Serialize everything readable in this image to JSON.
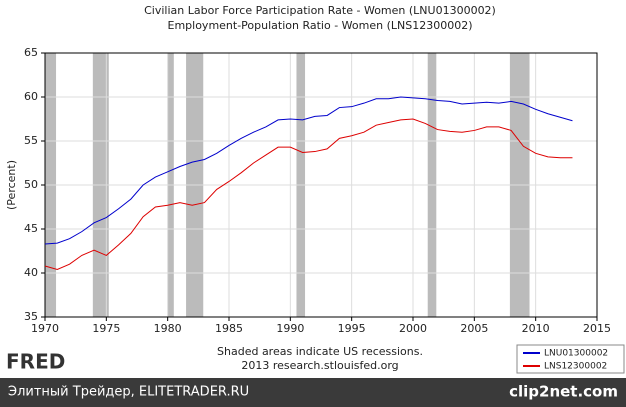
{
  "chart_data": {
    "type": "line",
    "title": "Civilian Labor Force Participation Rate - Women (LNU01300002)",
    "subtitle": "Employment-Population Ratio - Women (LNS12300002)",
    "ylabel": "(Percent)",
    "notes": [
      "Shaded areas indicate US recessions.",
      "2013 research.stlouisfed.org"
    ],
    "x": [
      1970,
      1971,
      1972,
      1973,
      1974,
      1975,
      1976,
      1977,
      1978,
      1979,
      1980,
      1981,
      1982,
      1983,
      1984,
      1985,
      1986,
      1987,
      1988,
      1989,
      1990,
      1991,
      1992,
      1993,
      1994,
      1995,
      1996,
      1997,
      1998,
      1999,
      2000,
      2001,
      2002,
      2003,
      2004,
      2005,
      2006,
      2007,
      2008,
      2009,
      2010,
      2011,
      2012,
      2013
    ],
    "series": [
      {
        "name": "LNU01300002",
        "color": "#0000cc",
        "values": [
          43.3,
          43.4,
          43.9,
          44.7,
          45.7,
          46.3,
          47.3,
          48.4,
          50.0,
          50.9,
          51.5,
          52.1,
          52.6,
          52.9,
          53.6,
          54.5,
          55.3,
          56.0,
          56.6,
          57.4,
          57.5,
          57.4,
          57.8,
          57.9,
          58.8,
          58.9,
          59.3,
          59.8,
          59.8,
          60.0,
          59.9,
          59.8,
          59.6,
          59.5,
          59.2,
          59.3,
          59.4,
          59.3,
          59.5,
          59.2,
          58.6,
          58.1,
          57.7,
          57.3
        ]
      },
      {
        "name": "LNS12300002",
        "color": "#dd0000",
        "values": [
          40.8,
          40.4,
          41.0,
          42.0,
          42.6,
          42.0,
          43.2,
          44.5,
          46.4,
          47.5,
          47.7,
          48.0,
          47.7,
          48.0,
          49.5,
          50.4,
          51.4,
          52.5,
          53.4,
          54.3,
          54.3,
          53.7,
          53.8,
          54.1,
          55.3,
          55.6,
          56.0,
          56.8,
          57.1,
          57.4,
          57.5,
          57.0,
          56.3,
          56.1,
          56.0,
          56.2,
          56.6,
          56.6,
          56.2,
          54.4,
          53.6,
          53.2,
          53.1,
          53.1
        ]
      }
    ],
    "recessions": [
      [
        1970.0,
        1970.9
      ],
      [
        1973.9,
        1975.2
      ],
      [
        1980.0,
        1980.5
      ],
      [
        1981.5,
        1982.9
      ],
      [
        1990.5,
        1991.2
      ],
      [
        2001.2,
        2001.9
      ],
      [
        2007.9,
        2009.5
      ]
    ],
    "recession_color": "#bbbbbb",
    "xlim": [
      1970,
      2015
    ],
    "xticks": [
      1970,
      1975,
      1980,
      1985,
      1990,
      1995,
      2000,
      2005,
      2010,
      2015
    ],
    "ylim": [
      35,
      65
    ],
    "yticks": [
      35,
      40,
      45,
      50,
      55,
      60,
      65
    ],
    "grid": true
  },
  "logo": "FRED",
  "watermark": {
    "left": "Элитный Трейдер, ELITETRADER.RU",
    "right": "clip2net.com"
  }
}
